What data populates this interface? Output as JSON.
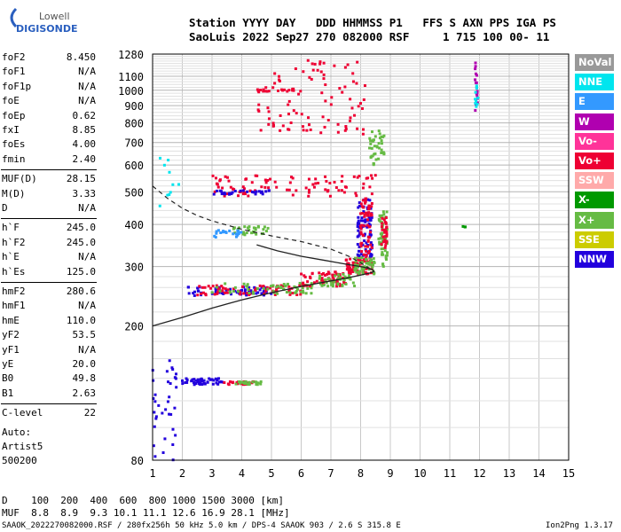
{
  "logo": {
    "line1": "Lowell",
    "line2": "DIGISONDE"
  },
  "header": {
    "line1": "Station YYYY DAY   DDD HHMMSS P1   FFS S AXN PPS IGA PS",
    "line2": "SaoLuis 2022 Sep27 270 082000 RSF     1 715 100 00- 11"
  },
  "params": [
    [
      {
        "name": "foF2",
        "value": "8.450"
      },
      {
        "name": "foF1",
        "value": "N/A"
      },
      {
        "name": "foF1p",
        "value": "N/A"
      },
      {
        "name": "foE",
        "value": "N/A"
      },
      {
        "name": "foEp",
        "value": "0.62"
      },
      {
        "name": "fxI",
        "value": "8.85"
      },
      {
        "name": "foEs",
        "value": "4.00"
      },
      {
        "name": "fmin",
        "value": "2.40"
      }
    ],
    [
      {
        "name": "MUF(D)",
        "value": "28.15"
      },
      {
        "name": "M(D)",
        "value": "3.33"
      },
      {
        "name": "D",
        "value": "N/A"
      }
    ],
    [
      {
        "name": "h`F",
        "value": "245.0"
      },
      {
        "name": "h`F2",
        "value": "245.0"
      },
      {
        "name": "h`E",
        "value": "N/A"
      },
      {
        "name": "h`Es",
        "value": "125.0"
      }
    ],
    [
      {
        "name": "hmF2",
        "value": "280.6"
      },
      {
        "name": "hmF1",
        "value": "N/A"
      },
      {
        "name": "hmE",
        "value": "110.0"
      },
      {
        "name": "yF2",
        "value": "53.5"
      },
      {
        "name": "yF1",
        "value": "N/A"
      },
      {
        "name": "yE",
        "value": "20.0"
      },
      {
        "name": "B0",
        "value": "49.8"
      },
      {
        "name": "B1",
        "value": "2.63"
      }
    ],
    [
      {
        "name": "C-level",
        "value": "22"
      }
    ]
  ],
  "autoscale": {
    "line1": "Auto:",
    "line2": "Artist5",
    "line3": "500200"
  },
  "legend": [
    {
      "label": "NoVal",
      "color": "#999999"
    },
    {
      "label": "NNE",
      "color": "#00e5ee"
    },
    {
      "label": "E",
      "color": "#3399ff"
    },
    {
      "label": "W",
      "color": "#b000b0"
    },
    {
      "label": "Vo-",
      "color": "#ff3399"
    },
    {
      "label": "Vo+",
      "color": "#ee0033"
    },
    {
      "label": "SSW",
      "color": "#ffaaaa"
    },
    {
      "label": "X-",
      "color": "#009900"
    },
    {
      "label": "X+",
      "color": "#66bb44"
    },
    {
      "label": "SSE",
      "color": "#cccc00"
    },
    {
      "label": "NNW",
      "color": "#2200dd"
    }
  ],
  "muf_table": {
    "d_label": "D",
    "d_values": [
      "100",
      "200",
      "400",
      "600",
      "800",
      "1000",
      "1500",
      "3000"
    ],
    "d_unit": "[km]",
    "muf_label": "MUF",
    "muf_values": [
      "8.8",
      "8.9",
      "9.3",
      "10.1",
      "11.1",
      "12.6",
      "16.9",
      "28.1"
    ],
    "muf_unit": "[MHz]"
  },
  "footer": {
    "left": "SAAOK_2022270082000.RSF / 280fx256h 50 kHz 5.0 km / DPS-4 SAAOK 903 / 2.6 S 315.8 E",
    "right": "Ion2Png 1.3.17"
  },
  "chart_data": {
    "type": "scatter",
    "xlim": [
      1,
      15
    ],
    "ylim": [
      80,
      1280
    ],
    "x_ticks": [
      "1",
      "2",
      "3",
      "4",
      "5",
      "6",
      "7",
      "8",
      "9",
      "10",
      "11",
      "12",
      "13",
      "14",
      "15"
    ],
    "y_ticks": [
      "80",
      "200",
      "300",
      "400",
      "500",
      "600",
      "700",
      "800",
      "900",
      "1000",
      "1100",
      "1280"
    ],
    "y_scale": "log",
    "grid": true,
    "profile_solid": [
      [
        1.0,
        200
      ],
      [
        2,
        212
      ],
      [
        3,
        226
      ],
      [
        4,
        239
      ],
      [
        5,
        251
      ],
      [
        6,
        262
      ],
      [
        7,
        272
      ],
      [
        7.5,
        277
      ],
      [
        8,
        283
      ],
      [
        8.3,
        287
      ],
      [
        8.45,
        290
      ],
      [
        8.4,
        294
      ],
      [
        8.1,
        299
      ],
      [
        7.5,
        305
      ],
      [
        6.8,
        313
      ],
      [
        6,
        322
      ],
      [
        5.2,
        334
      ],
      [
        4.5,
        348
      ]
    ],
    "profile_dashed": [
      [
        1.0,
        520
      ],
      [
        1.5,
        478
      ],
      [
        2,
        447
      ],
      [
        2.5,
        425
      ],
      [
        3,
        410
      ],
      [
        4,
        387
      ],
      [
        5,
        370
      ],
      [
        6,
        356
      ],
      [
        7,
        338
      ],
      [
        7.6,
        322
      ],
      [
        8.0,
        308
      ],
      [
        8.3,
        296
      ],
      [
        8.45,
        290
      ]
    ],
    "clusters": [
      {
        "f": [
          2.2,
          5.0
        ],
        "h": [
          246,
          262
        ],
        "color": "#2200dd",
        "n": 60
      },
      {
        "f": [
          2.5,
          6.0
        ],
        "h": [
          247,
          264
        ],
        "color": "#ee0033",
        "n": 70
      },
      {
        "f": [
          3.0,
          6.5
        ],
        "h": [
          249,
          268
        ],
        "color": "#66bb44",
        "n": 60
      },
      {
        "f": [
          6.0,
          7.5
        ],
        "h": [
          262,
          290
        ],
        "color": "#ee0033",
        "n": 60
      },
      {
        "f": [
          6.5,
          7.8
        ],
        "h": [
          262,
          285
        ],
        "color": "#66bb44",
        "n": 40
      },
      {
        "f": [
          7.5,
          8.4
        ],
        "h": [
          285,
          320
        ],
        "color": "#ee0033",
        "n": 70
      },
      {
        "f": [
          7.8,
          8.5
        ],
        "h": [
          285,
          320
        ],
        "color": "#66bb44",
        "n": 50
      },
      {
        "f": [
          7.9,
          8.4
        ],
        "h": [
          320,
          480
        ],
        "color": "#2200dd",
        "n": 80
      },
      {
        "f": [
          8.0,
          8.4
        ],
        "h": [
          320,
          480
        ],
        "color": "#ee0033",
        "n": 60
      },
      {
        "f": [
          8.6,
          8.9
        ],
        "h": [
          300,
          440
        ],
        "color": "#66bb44",
        "n": 50
      },
      {
        "f": [
          8.7,
          8.9
        ],
        "h": [
          340,
          420
        ],
        "color": "#ee0033",
        "n": 30
      },
      {
        "f": [
          3.0,
          8.5
        ],
        "h": [
          485,
          560
        ],
        "color": "#ee0033",
        "n": 90
      },
      {
        "f": [
          3.0,
          5.0
        ],
        "h": [
          490,
          505
        ],
        "color": "#2200dd",
        "n": 30
      },
      {
        "f": [
          8.3,
          8.8
        ],
        "h": [
          600,
          760
        ],
        "color": "#66bb44",
        "n": 40
      },
      {
        "f": [
          3.5,
          5.0
        ],
        "h": [
          370,
          395
        ],
        "color": "#66bb44",
        "n": 30
      },
      {
        "f": [
          3.0,
          4.0
        ],
        "h": [
          365,
          385
        ],
        "color": "#3399ff",
        "n": 20
      },
      {
        "f": [
          1.0,
          1.8
        ],
        "h": [
          80,
          160
        ],
        "color": "#2200dd",
        "n": 35
      },
      {
        "f": [
          2.0,
          3.4
        ],
        "h": [
          134,
          140
        ],
        "color": "#2200dd",
        "n": 45
      },
      {
        "f": [
          3.4,
          4.4
        ],
        "h": [
          134,
          137
        ],
        "color": "#ee0033",
        "n": 25
      },
      {
        "f": [
          3.8,
          4.7
        ],
        "h": [
          134,
          137
        ],
        "color": "#66bb44",
        "n": 25
      },
      {
        "f": [
          4.5,
          8.2
        ],
        "h": [
          730,
          1230
        ],
        "color": "#ee0033",
        "n": 90
      },
      {
        "f": [
          4.5,
          6.0
        ],
        "h": [
          990,
          1010
        ],
        "color": "#ee0033",
        "n": 20
      },
      {
        "f": [
          11.85,
          11.95
        ],
        "h": [
          870,
          1270
        ],
        "color": "#b000b0",
        "n": 18
      },
      {
        "f": [
          11.85,
          11.95
        ],
        "h": [
          880,
          1070
        ],
        "color": "#00e5ee",
        "n": 10
      },
      {
        "f": [
          1.2,
          1.9
        ],
        "h": [
          450,
          630
        ],
        "color": "#00e5ee",
        "n": 10
      },
      {
        "f": [
          11.4,
          11.6
        ],
        "h": [
          385,
          400
        ],
        "color": "#009900",
        "n": 3
      }
    ]
  }
}
